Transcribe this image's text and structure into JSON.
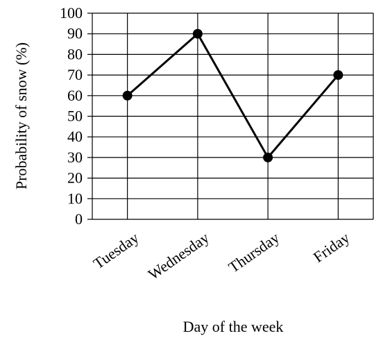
{
  "chart_data": {
    "type": "line",
    "xlabel": "Day of the week",
    "ylabel": "Probability of snow (%)",
    "categories": [
      "Tuesday",
      "Wednesday",
      "Thursday",
      "Friday"
    ],
    "values": [
      60,
      90,
      30,
      70
    ],
    "color": "#000000",
    "ylim": [
      0,
      100
    ],
    "yticks": [
      0,
      10,
      20,
      30,
      40,
      50,
      60,
      70,
      80,
      90,
      100
    ],
    "grid": true
  }
}
